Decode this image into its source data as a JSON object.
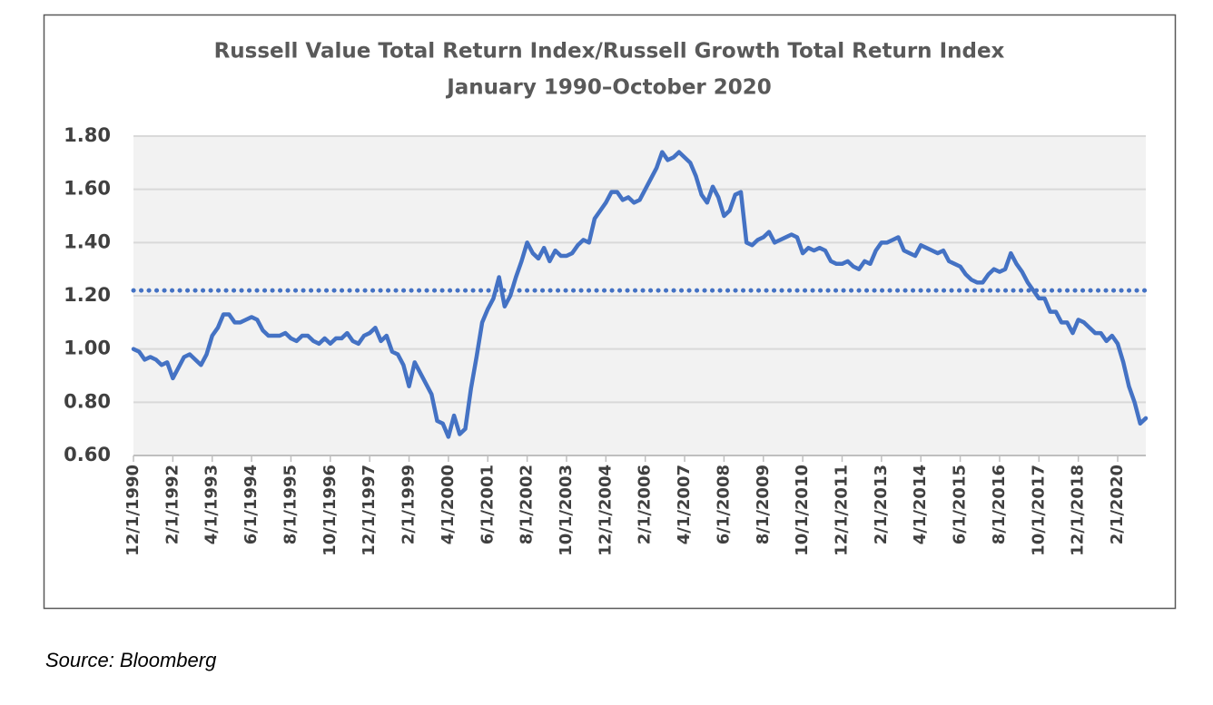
{
  "chart_data": {
    "type": "line",
    "title": "Russell Value Total Return Index/Russell Growth Total Return Index",
    "subtitle": "January 1990–October 2020",
    "source": "Source:  Bloomberg",
    "categories": [
      "12/1/1990",
      null,
      null,
      null,
      null,
      null,
      null,
      "2/1/1992",
      null,
      null,
      null,
      null,
      null,
      null,
      "4/1/1993",
      null,
      null,
      null,
      null,
      null,
      null,
      "6/1/1994",
      null,
      null,
      null,
      null,
      null,
      null,
      "8/1/1995",
      null,
      null,
      null,
      null,
      null,
      null,
      "10/1/1996",
      null,
      null,
      null,
      null,
      null,
      null,
      "12/1/1997",
      null,
      null,
      null,
      null,
      null,
      null,
      "2/1/1999",
      null,
      null,
      null,
      null,
      null,
      null,
      "4/1/2000",
      null,
      null,
      null,
      null,
      null,
      null,
      "6/1/2001",
      null,
      null,
      null,
      null,
      null,
      null,
      "8/1/2002",
      null,
      null,
      null,
      null,
      null,
      null,
      "10/1/2003",
      null,
      null,
      null,
      null,
      null,
      null,
      "12/1/2004",
      null,
      null,
      null,
      null,
      null,
      null,
      "2/1/2006",
      null,
      null,
      null,
      null,
      null,
      null,
      "4/1/2007",
      null,
      null,
      null,
      null,
      null,
      null,
      "6/1/2008",
      null,
      null,
      null,
      null,
      null,
      null,
      "8/1/2009",
      null,
      null,
      null,
      null,
      null,
      null,
      "10/1/2010",
      null,
      null,
      null,
      null,
      null,
      null,
      "12/1/2011",
      null,
      null,
      null,
      null,
      null,
      null,
      "2/1/2013",
      null,
      null,
      null,
      null,
      null,
      null,
      "4/1/2014",
      null,
      null,
      null,
      null,
      null,
      null,
      "6/1/2015",
      null,
      null,
      null,
      null,
      null,
      null,
      "8/1/2016",
      null,
      null,
      null,
      null,
      null,
      null,
      "10/1/2017",
      null,
      null,
      null,
      null,
      null,
      null,
      "12/1/2018",
      null,
      null,
      null,
      null,
      null,
      null,
      "2/1/2020",
      null,
      null,
      null,
      null,
      null
    ],
    "series": [
      {
        "color": "#4472c4",
        "values": [
          1.0,
          0.99,
          0.96,
          0.97,
          0.96,
          0.94,
          0.95,
          0.89,
          0.93,
          0.97,
          0.98,
          0.96,
          0.94,
          0.98,
          1.05,
          1.08,
          1.13,
          1.13,
          1.1,
          1.1,
          1.11,
          1.12,
          1.11,
          1.07,
          1.05,
          1.05,
          1.05,
          1.06,
          1.04,
          1.03,
          1.05,
          1.05,
          1.03,
          1.02,
          1.04,
          1.02,
          1.04,
          1.04,
          1.06,
          1.03,
          1.02,
          1.05,
          1.06,
          1.08,
          1.03,
          1.05,
          0.99,
          0.98,
          0.94,
          0.86,
          0.95,
          0.91,
          0.87,
          0.83,
          0.73,
          0.72,
          0.67,
          0.75,
          0.68,
          0.7,
          0.85,
          0.97,
          1.1,
          1.15,
          1.19,
          1.27,
          1.16,
          1.2,
          1.27,
          1.33,
          1.4,
          1.36,
          1.34,
          1.38,
          1.33,
          1.37,
          1.35,
          1.35,
          1.36,
          1.39,
          1.41,
          1.4,
          1.49,
          1.52,
          1.55,
          1.59,
          1.59,
          1.56,
          1.57,
          1.55,
          1.56,
          1.6,
          1.64,
          1.68,
          1.74,
          1.71,
          1.72,
          1.74,
          1.72,
          1.7,
          1.65,
          1.58,
          1.55,
          1.61,
          1.57,
          1.5,
          1.52,
          1.58,
          1.59,
          1.4,
          1.39,
          1.41,
          1.42,
          1.44,
          1.4,
          1.41,
          1.42,
          1.43,
          1.42,
          1.36,
          1.38,
          1.37,
          1.38,
          1.37,
          1.33,
          1.32,
          1.32,
          1.33,
          1.31,
          1.3,
          1.33,
          1.32,
          1.37,
          1.4,
          1.4,
          1.41,
          1.42,
          1.37,
          1.36,
          1.35,
          1.39,
          1.38,
          1.37,
          1.36,
          1.37,
          1.33,
          1.32,
          1.31,
          1.28,
          1.26,
          1.25,
          1.25,
          1.28,
          1.3,
          1.29,
          1.3,
          1.36,
          1.32,
          1.29,
          1.25,
          1.22,
          1.19,
          1.19,
          1.14,
          1.14,
          1.1,
          1.1,
          1.06,
          1.11,
          1.1,
          1.08,
          1.06,
          1.06,
          1.03,
          1.05,
          1.02,
          0.95,
          0.86,
          0.8,
          0.72,
          0.74
        ]
      }
    ],
    "hline": 1.22,
    "ylim": [
      0.6,
      1.8
    ],
    "yticks": [
      {
        "value": 0.6,
        "label": "0.60"
      },
      {
        "value": 0.8,
        "label": "0.80"
      },
      {
        "value": 1.0,
        "label": "1.00"
      },
      {
        "value": 1.2,
        "label": "1.20"
      },
      {
        "value": 1.4,
        "label": "1.40"
      },
      {
        "value": 1.6,
        "label": "1.60"
      },
      {
        "value": 1.8,
        "label": "1.80"
      }
    ],
    "grid": true
  }
}
